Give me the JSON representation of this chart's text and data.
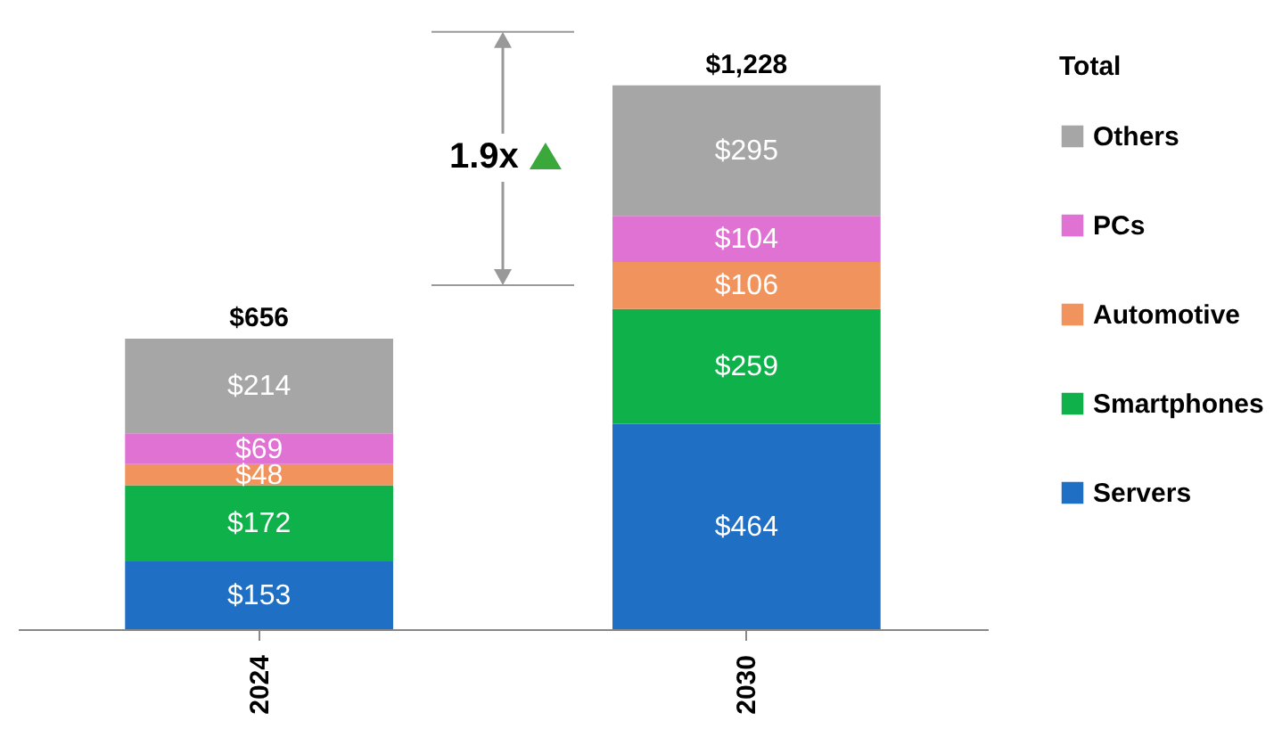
{
  "chart_data": {
    "type": "bar",
    "stacked": true,
    "categories": [
      "2024",
      "2030"
    ],
    "legend_title": "Total",
    "legend": "right",
    "grid": false,
    "series": [
      {
        "name": "Servers",
        "color": "#1f6fc5",
        "values": [
          153,
          464
        ],
        "value_labels": [
          "$153",
          "$464"
        ]
      },
      {
        "name": "Smartphones",
        "color": "#0fb14a",
        "values": [
          172,
          259
        ],
        "value_labels": [
          "$172",
          "$259"
        ]
      },
      {
        "name": "Automotive",
        "color": "#f0935d",
        "values": [
          48,
          106
        ],
        "value_labels": [
          "$48",
          "$106"
        ]
      },
      {
        "name": "PCs",
        "color": "#e072d4",
        "values": [
          69,
          104
        ],
        "value_labels": [
          "$69",
          "$104"
        ]
      },
      {
        "name": "Others",
        "color": "#a6a6a6",
        "values": [
          214,
          295
        ],
        "value_labels": [
          "$214",
          "$295"
        ]
      }
    ],
    "totals": [
      "$656",
      "$1,228"
    ],
    "annotations": [
      "1.9x"
    ]
  }
}
